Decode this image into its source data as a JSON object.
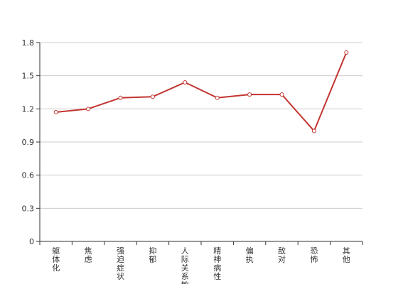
{
  "chart_data": {
    "type": "line",
    "categories": [
      "躯体化",
      "焦虑",
      "强迫症状",
      "抑郁",
      "人际关系敏感",
      "精神病性",
      "偏执",
      "敌对",
      "恐怖",
      "其他"
    ],
    "series": [
      {
        "values": [
          1.17,
          1.2,
          1.3,
          1.31,
          1.44,
          1.3,
          1.33,
          1.33,
          1.0,
          1.71
        ]
      }
    ],
    "yticks": [
      "0",
      "0.3",
      "0.6",
      "0.9",
      "1.2",
      "1.5",
      "1.8"
    ],
    "ylim": [
      0,
      1.8
    ],
    "grid": true,
    "legend": "none",
    "colors": {
      "line": "#c23531",
      "marker_fill": "#ffffff",
      "grid": "#cccccc",
      "axis": "#333333"
    }
  }
}
